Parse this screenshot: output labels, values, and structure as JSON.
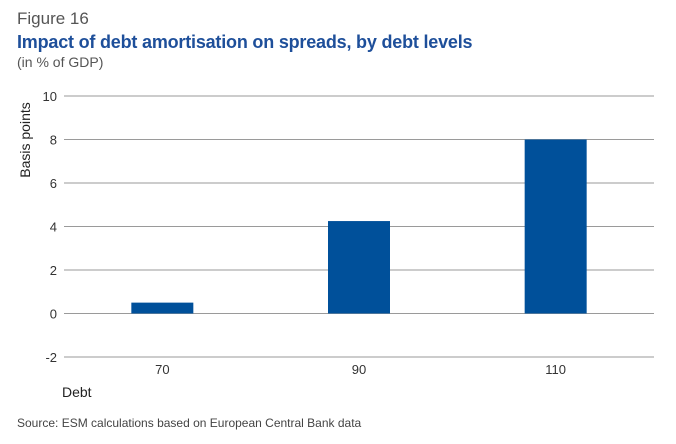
{
  "figure": {
    "label": "Figure 16",
    "title": "Impact of debt amortisation on spreads, by debt levels",
    "subtitle": "(in % of GDP)",
    "source": "Source: ESM calculations based on European Central Bank data"
  },
  "chart_data": {
    "type": "bar",
    "categories": [
      "70",
      "90",
      "110"
    ],
    "values": [
      0.5,
      4.25,
      8.0
    ],
    "xlabel": "Debt",
    "ylabel": "Basis points",
    "ylim": [
      -2,
      10
    ],
    "yticks": [
      -2,
      0,
      2,
      4,
      6,
      8,
      10
    ],
    "grid": true,
    "legend": "none",
    "bar_color": "#00509a",
    "grid_color": "#9a9a9a"
  }
}
